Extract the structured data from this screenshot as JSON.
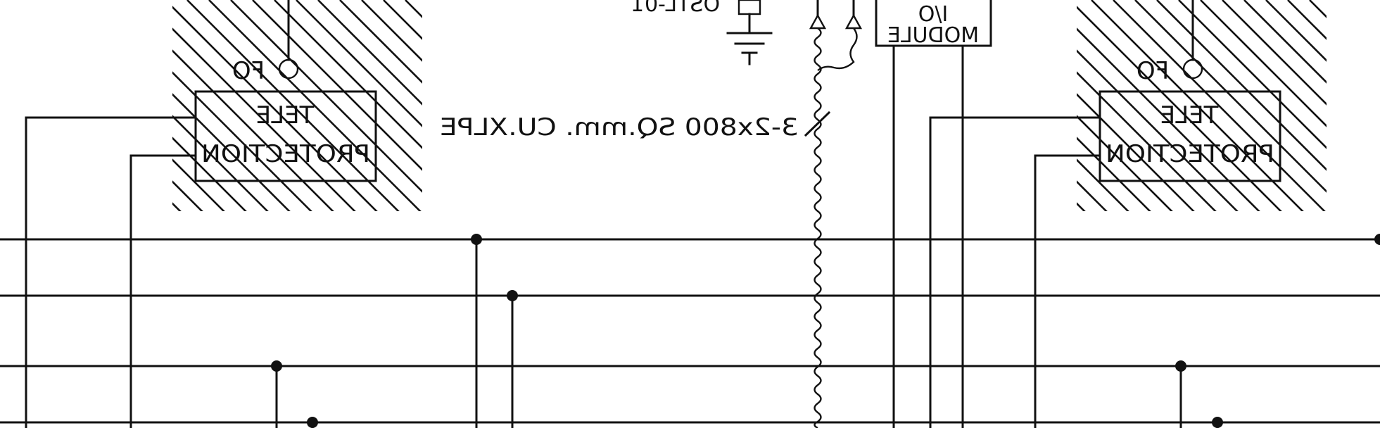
{
  "drawing": {
    "background": "#ffffff",
    "line_color": "#111111",
    "left_block": {
      "label_top": "TELE",
      "label_bottom": "PROTECTION",
      "fo_label": "FO"
    },
    "right_block": {
      "label_top": "TELE",
      "label_bottom": "PROTECTION",
      "fo_label": "FO"
    },
    "cable_label": "3-2x800 SQ.mm. CU.XLPE",
    "remote_io": {
      "line1": "",
      "line2": "I/O",
      "line3": "MODULE"
    },
    "fragment_label": "OSTL-01",
    "mirrored_text": true
  }
}
